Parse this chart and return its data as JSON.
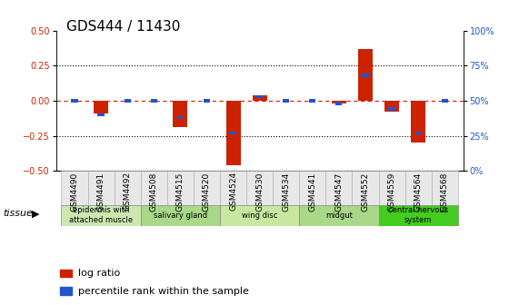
{
  "title": "GDS444 / 11430",
  "samples": [
    "GSM4490",
    "GSM4491",
    "GSM4492",
    "GSM4508",
    "GSM4515",
    "GSM4520",
    "GSM4524",
    "GSM4530",
    "GSM4534",
    "GSM4541",
    "GSM4547",
    "GSM4552",
    "GSM4559",
    "GSM4564",
    "GSM4568"
  ],
  "log_ratio": [
    0.0,
    -0.09,
    0.0,
    0.0,
    -0.19,
    0.0,
    -0.46,
    0.04,
    0.0,
    0.0,
    -0.02,
    0.37,
    -0.08,
    -0.3,
    0.0
  ],
  "percentile": [
    50,
    40,
    50,
    50,
    38,
    50,
    27,
    53,
    50,
    50,
    48,
    68,
    44,
    27,
    50
  ],
  "tissue_groups": [
    {
      "label": "epidermis with\nattached muscle",
      "start": 0,
      "end": 2,
      "color": "#cce8b0"
    },
    {
      "label": "salivary gland",
      "start": 3,
      "end": 5,
      "color": "#a8d888"
    },
    {
      "label": "wing disc",
      "start": 6,
      "end": 8,
      "color": "#c8e8a0"
    },
    {
      "label": "midgut",
      "start": 9,
      "end": 11,
      "color": "#a8d888"
    },
    {
      "label": "central nervous\nsystem",
      "start": 12,
      "end": 14,
      "color": "#44cc20"
    }
  ],
  "ylim": [
    -0.5,
    0.5
  ],
  "yticks_left": [
    -0.5,
    -0.25,
    0.0,
    0.25,
    0.5
  ],
  "yticks_right": [
    0,
    25,
    50,
    75,
    100
  ],
  "bar_color_red": "#cc2200",
  "bar_color_blue": "#2255cc",
  "title_fontsize": 11,
  "tick_fontsize": 7,
  "bar_width": 0.55
}
